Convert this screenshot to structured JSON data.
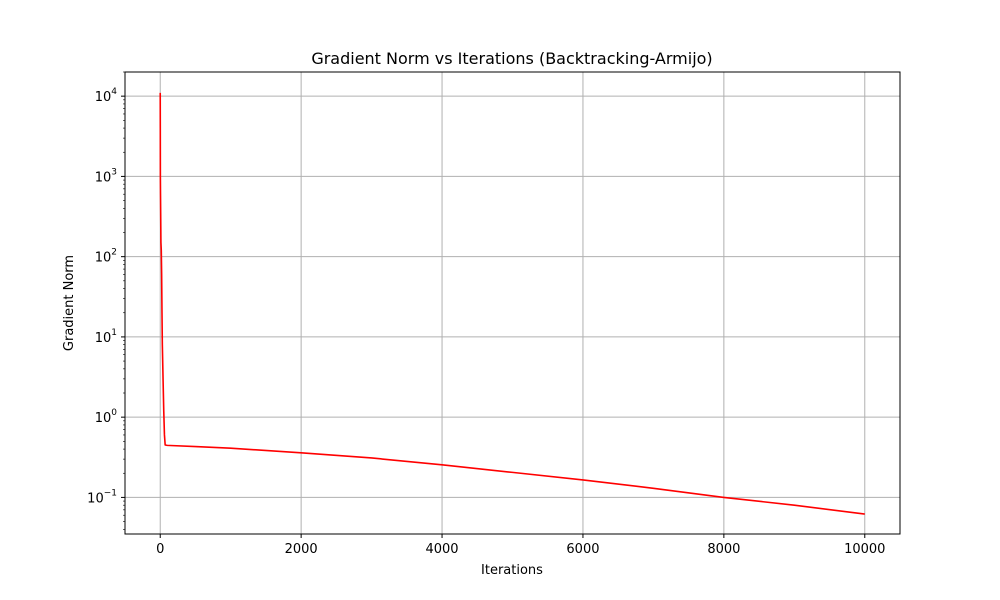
{
  "chart_data": {
    "type": "line",
    "title": "Gradient Norm vs Iterations (Backtracking-Armijo)",
    "xlabel": "Iterations",
    "ylabel": "Gradient Norm",
    "xlim": [
      -500,
      10500
    ],
    "ylim": [
      0.035,
      20000
    ],
    "yscale": "log",
    "grid": true,
    "x_ticks": [
      0,
      2000,
      4000,
      6000,
      8000,
      10000
    ],
    "x_tick_labels": [
      "0",
      "2000",
      "4000",
      "6000",
      "8000",
      "10000"
    ],
    "y_ticks": [
      {
        "value": 0.1,
        "base": "10",
        "exp": "−1"
      },
      {
        "value": 1,
        "base": "10",
        "exp": "0"
      },
      {
        "value": 10,
        "base": "10",
        "exp": "1"
      },
      {
        "value": 100,
        "base": "10",
        "exp": "2"
      },
      {
        "value": 1000,
        "base": "10",
        "exp": "3"
      },
      {
        "value": 10000,
        "base": "10",
        "exp": "4"
      }
    ],
    "series": [
      {
        "color": "#ff0000",
        "x": [
          0,
          1,
          2,
          4,
          7,
          10,
          15,
          20,
          25,
          30,
          40,
          50,
          60,
          70,
          100,
          500,
          1000,
          2000,
          3000,
          4000,
          5000,
          6000,
          7000,
          8000,
          9000,
          10000
        ],
        "y": [
          11000,
          4000,
          1000,
          600,
          300,
          150,
          120,
          60,
          20,
          8,
          3,
          1.2,
          0.6,
          0.45,
          0.445,
          0.43,
          0.41,
          0.36,
          0.31,
          0.255,
          0.205,
          0.165,
          0.13,
          0.1,
          0.08,
          0.062
        ]
      }
    ]
  }
}
